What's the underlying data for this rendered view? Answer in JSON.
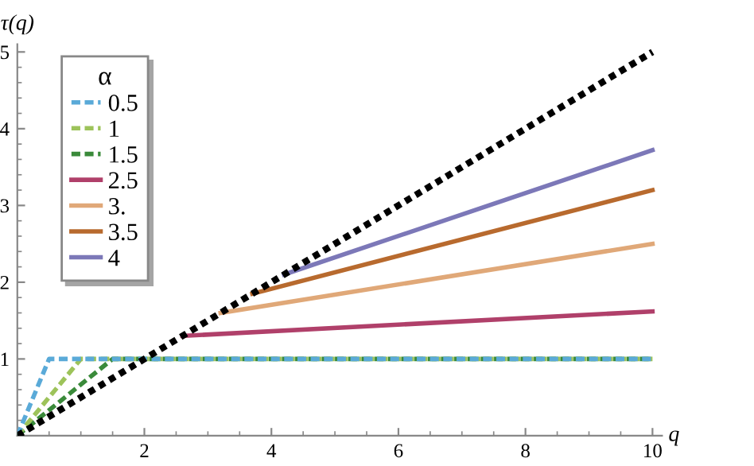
{
  "chart_data": {
    "type": "line",
    "xlabel": "q",
    "ylabel": "τ(q)",
    "legend_title": "α",
    "legend": "top left",
    "xlim": [
      0,
      10.15
    ],
    "ylim": [
      0,
      5.1
    ],
    "xticks": [
      2,
      4,
      6,
      8,
      10
    ],
    "yticks": [
      1,
      2,
      3,
      4,
      5
    ],
    "grid": false,
    "series": [
      {
        "name": "0.5",
        "color": "#5aaad8",
        "line_style": "dashed",
        "x": [
          0,
          0.5,
          10
        ],
        "values": [
          0,
          1,
          1
        ]
      },
      {
        "name": "1",
        "color": "#9dc35a",
        "line_style": "dashed",
        "x": [
          0,
          1,
          10
        ],
        "values": [
          0,
          1,
          1
        ]
      },
      {
        "name": "1.5",
        "color": "#3a8a3a",
        "line_style": "dashed",
        "x": [
          0,
          1.5,
          10
        ],
        "values": [
          0,
          1,
          1
        ]
      },
      {
        "name": "2.5",
        "color": "#b0406a",
        "line_style": "solid",
        "x": [
          2.6,
          10
        ],
        "values": [
          1.3,
          1.62
        ]
      },
      {
        "name": "3.",
        "color": "#e0a878",
        "line_style": "solid",
        "x": [
          3.2,
          10
        ],
        "values": [
          1.6,
          2.5
        ]
      },
      {
        "name": "3.5",
        "color": "#b86a2e",
        "line_style": "solid",
        "x": [
          3.7,
          10
        ],
        "values": [
          1.85,
          3.2
        ]
      },
      {
        "name": "4",
        "color": "#7c78b8",
        "line_style": "solid",
        "x": [
          4.2,
          10
        ],
        "values": [
          2.1,
          3.72
        ]
      },
      {
        "color": "#000000",
        "line_style": "dotted",
        "x": [
          0,
          10
        ],
        "values": [
          0,
          5
        ]
      }
    ]
  }
}
